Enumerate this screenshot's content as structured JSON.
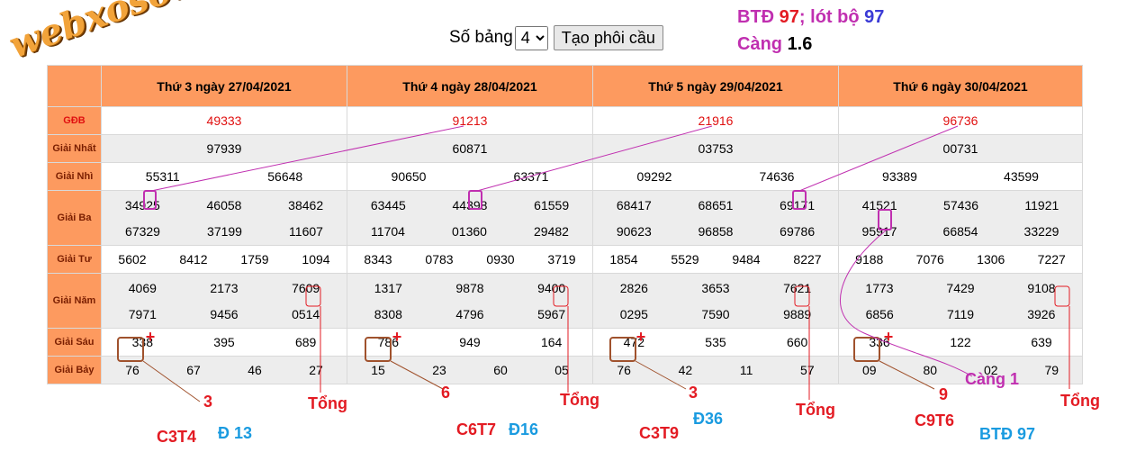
{
  "logo_text": "webxoso.net",
  "toolbar": {
    "label": "Số bảng",
    "select_value": "4",
    "button_label": "Tạo phôi cầu"
  },
  "topnote": {
    "btd_label": "BTĐ",
    "btd_value": "97",
    "sep": "; lót bộ",
    "lot_value": "97",
    "cang_label": "Càng",
    "cang_value": "1.6"
  },
  "labels": [
    "GĐB",
    "Giải Nhất",
    "Giải Nhì",
    "Giải Ba",
    "Giải Tư",
    "Giải Năm",
    "Giải Sáu",
    "Giải Bảy"
  ],
  "days": [
    {
      "title": "Thứ 3 ngày 27/04/2021",
      "gdb": [
        "49333"
      ],
      "nhat": [
        "97939"
      ],
      "nhi": [
        "55311",
        "56648"
      ],
      "ba": [
        [
          "34925",
          "46058",
          "38462"
        ],
        [
          "67329",
          "37199",
          "11607"
        ]
      ],
      "tu": [
        "5602",
        "8412",
        "1759",
        "1094"
      ],
      "nam": [
        [
          "4069",
          "2173",
          "7609"
        ],
        [
          "7971",
          "9456",
          "0514"
        ]
      ],
      "sau": [
        "338",
        "395",
        "689"
      ],
      "bay": [
        "76",
        "67",
        "46",
        "27"
      ]
    },
    {
      "title": "Thứ 4 ngày 28/04/2021",
      "gdb": [
        "91213"
      ],
      "nhat": [
        "60871"
      ],
      "nhi": [
        "90650",
        "63371"
      ],
      "ba": [
        [
          "63445",
          "44398",
          "61559"
        ],
        [
          "11704",
          "01360",
          "29482"
        ]
      ],
      "tu": [
        "8343",
        "0783",
        "0930",
        "3719"
      ],
      "nam": [
        [
          "1317",
          "9878",
          "9400"
        ],
        [
          "8308",
          "4796",
          "5967"
        ]
      ],
      "sau": [
        "786",
        "949",
        "164"
      ],
      "bay": [
        "15",
        "23",
        "60",
        "05"
      ]
    },
    {
      "title": "Thứ 5 ngày 29/04/2021",
      "gdb": [
        "21916"
      ],
      "nhat": [
        "03753"
      ],
      "nhi": [
        "09292",
        "74636"
      ],
      "ba": [
        [
          "68417",
          "68651",
          "69171"
        ],
        [
          "90623",
          "96858",
          "69786"
        ]
      ],
      "tu": [
        "1854",
        "5529",
        "9484",
        "8227"
      ],
      "nam": [
        [
          "2826",
          "3653",
          "7621"
        ],
        [
          "0295",
          "7590",
          "9889"
        ]
      ],
      "sau": [
        "472",
        "535",
        "660"
      ],
      "bay": [
        "76",
        "42",
        "11",
        "57"
      ]
    },
    {
      "title": "Thứ 6 ngày 30/04/2021",
      "gdb": [
        "96736"
      ],
      "nhat": [
        "00731"
      ],
      "nhi": [
        "93389",
        "43599"
      ],
      "ba": [
        [
          "41521",
          "57436",
          "11921"
        ],
        [
          "95917",
          "66854",
          "33229"
        ]
      ],
      "tu": [
        "9188",
        "7076",
        "1306",
        "7227"
      ],
      "nam": [
        [
          "1773",
          "7429",
          "9108"
        ],
        [
          "6856",
          "7119",
          "3926"
        ]
      ],
      "sau": [
        "336",
        "122",
        "639"
      ],
      "bay": [
        "09",
        "80",
        "02",
        "79"
      ]
    }
  ],
  "annotations": [
    {
      "text": "3",
      "color": "#e31b23"
    },
    {
      "text": "Tổng",
      "color": "#e31b23"
    },
    {
      "text": "6",
      "color": "#e31b23"
    },
    {
      "text": "Tổng",
      "color": "#e31b23"
    },
    {
      "text": "3",
      "color": "#e31b23"
    },
    {
      "text": "Tổng",
      "color": "#e31b23"
    },
    {
      "text": "9",
      "color": "#e31b23"
    },
    {
      "text": "Càng 1",
      "color": "#c02fb0"
    },
    {
      "text": "Tổng",
      "color": "#e31b23"
    },
    {
      "text": "C3T4",
      "color": "#e31b23"
    },
    {
      "text": "Đ 13",
      "color": "#1a9be0"
    },
    {
      "text": "C6T7",
      "color": "#e31b23"
    },
    {
      "text": "Đ16",
      "color": "#1a9be0"
    },
    {
      "text": "C3T9",
      "color": "#e31b23"
    },
    {
      "text": "Đ36",
      "color": "#1a9be0"
    },
    {
      "text": "C9T6",
      "color": "#e31b23"
    },
    {
      "text": "BTĐ 97",
      "color": "#1a9be0"
    }
  ],
  "plus_mark": "+",
  "colors": {
    "header_bg": "#fd9a5f",
    "red": "#e31b23",
    "magenta": "#c02fb0",
    "blue": "#1a9be0",
    "brown": "#a0522d"
  }
}
